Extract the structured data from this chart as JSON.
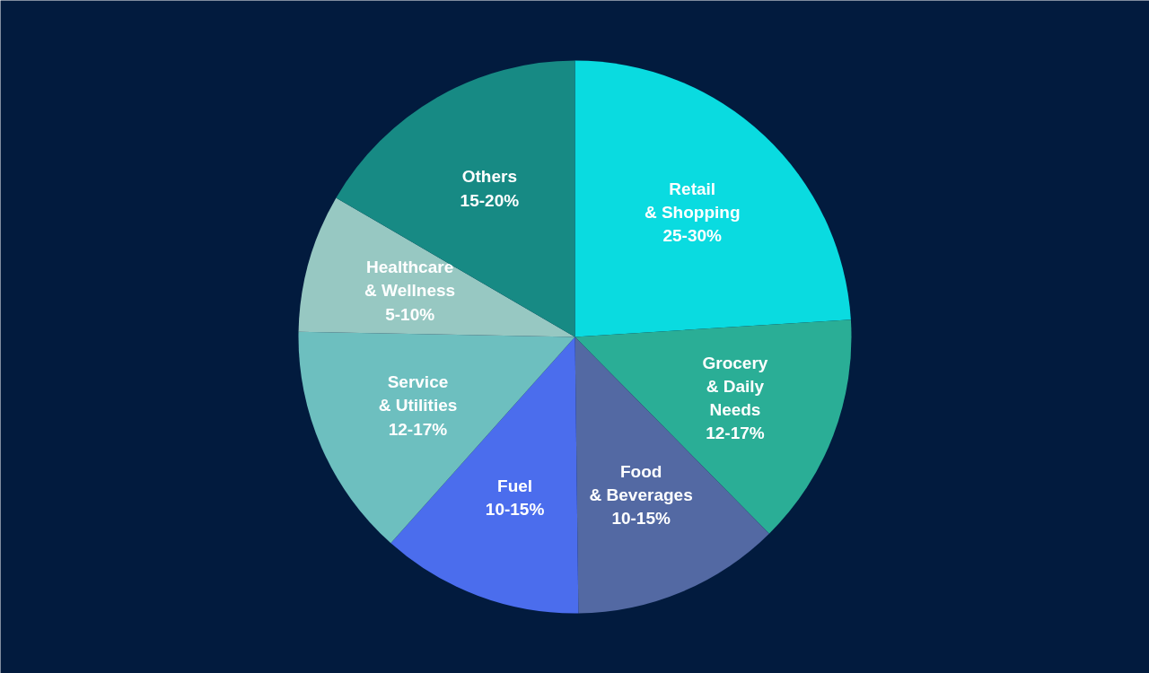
{
  "chart_data": {
    "type": "pie",
    "categories": [
      "Retail\n& Shopping\n25-30%",
      "Grocery\n& Daily\nNeeds\n12-17%",
      "Food\n& Beverages\n10-15%",
      "Fuel\n10-15%",
      "Service\n& Utilities\n12-17%",
      "Healthcare\n& Wellness\n5-10%",
      "Others\n15-20%"
    ],
    "values": [
      24,
      13.6,
      12.2,
      11.8,
      13.7,
      8.1,
      16.6
    ],
    "colors": [
      "#0adbe0",
      "#2aae96",
      "#5369a3",
      "#4b6ded",
      "#6dbfbf",
      "#97c8c2",
      "#178a84"
    ]
  }
}
